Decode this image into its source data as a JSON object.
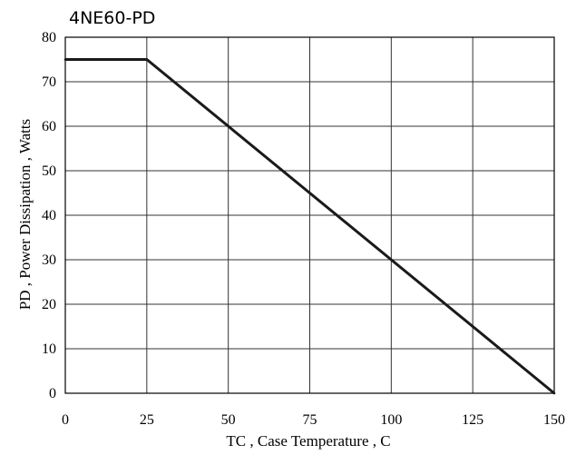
{
  "chart_data": {
    "type": "line",
    "title": "4NE60-PD",
    "xlabel": "TC , Case Temperature , C",
    "ylabel": "PD , Power Dissipation ,  Watts",
    "xlim": [
      0,
      150
    ],
    "ylim": [
      0,
      80
    ],
    "x_ticks": [
      0,
      25,
      50,
      75,
      100,
      125,
      150
    ],
    "y_ticks": [
      0,
      10,
      20,
      30,
      40,
      50,
      60,
      70,
      80
    ],
    "x_tick_labels": [
      "0",
      "25",
      "50",
      "75",
      "100",
      "125",
      "150"
    ],
    "y_tick_labels": [
      "0",
      "10",
      "20",
      "30",
      "40",
      "50",
      "60",
      "70",
      "80"
    ],
    "grid": true,
    "series": [
      {
        "x": [
          0,
          25,
          150
        ],
        "y": [
          75,
          75,
          0
        ]
      }
    ],
    "colors": {
      "line": "#1a1a1a",
      "grid": "#333333",
      "frame": "#000000",
      "background": "#ffffff"
    }
  }
}
